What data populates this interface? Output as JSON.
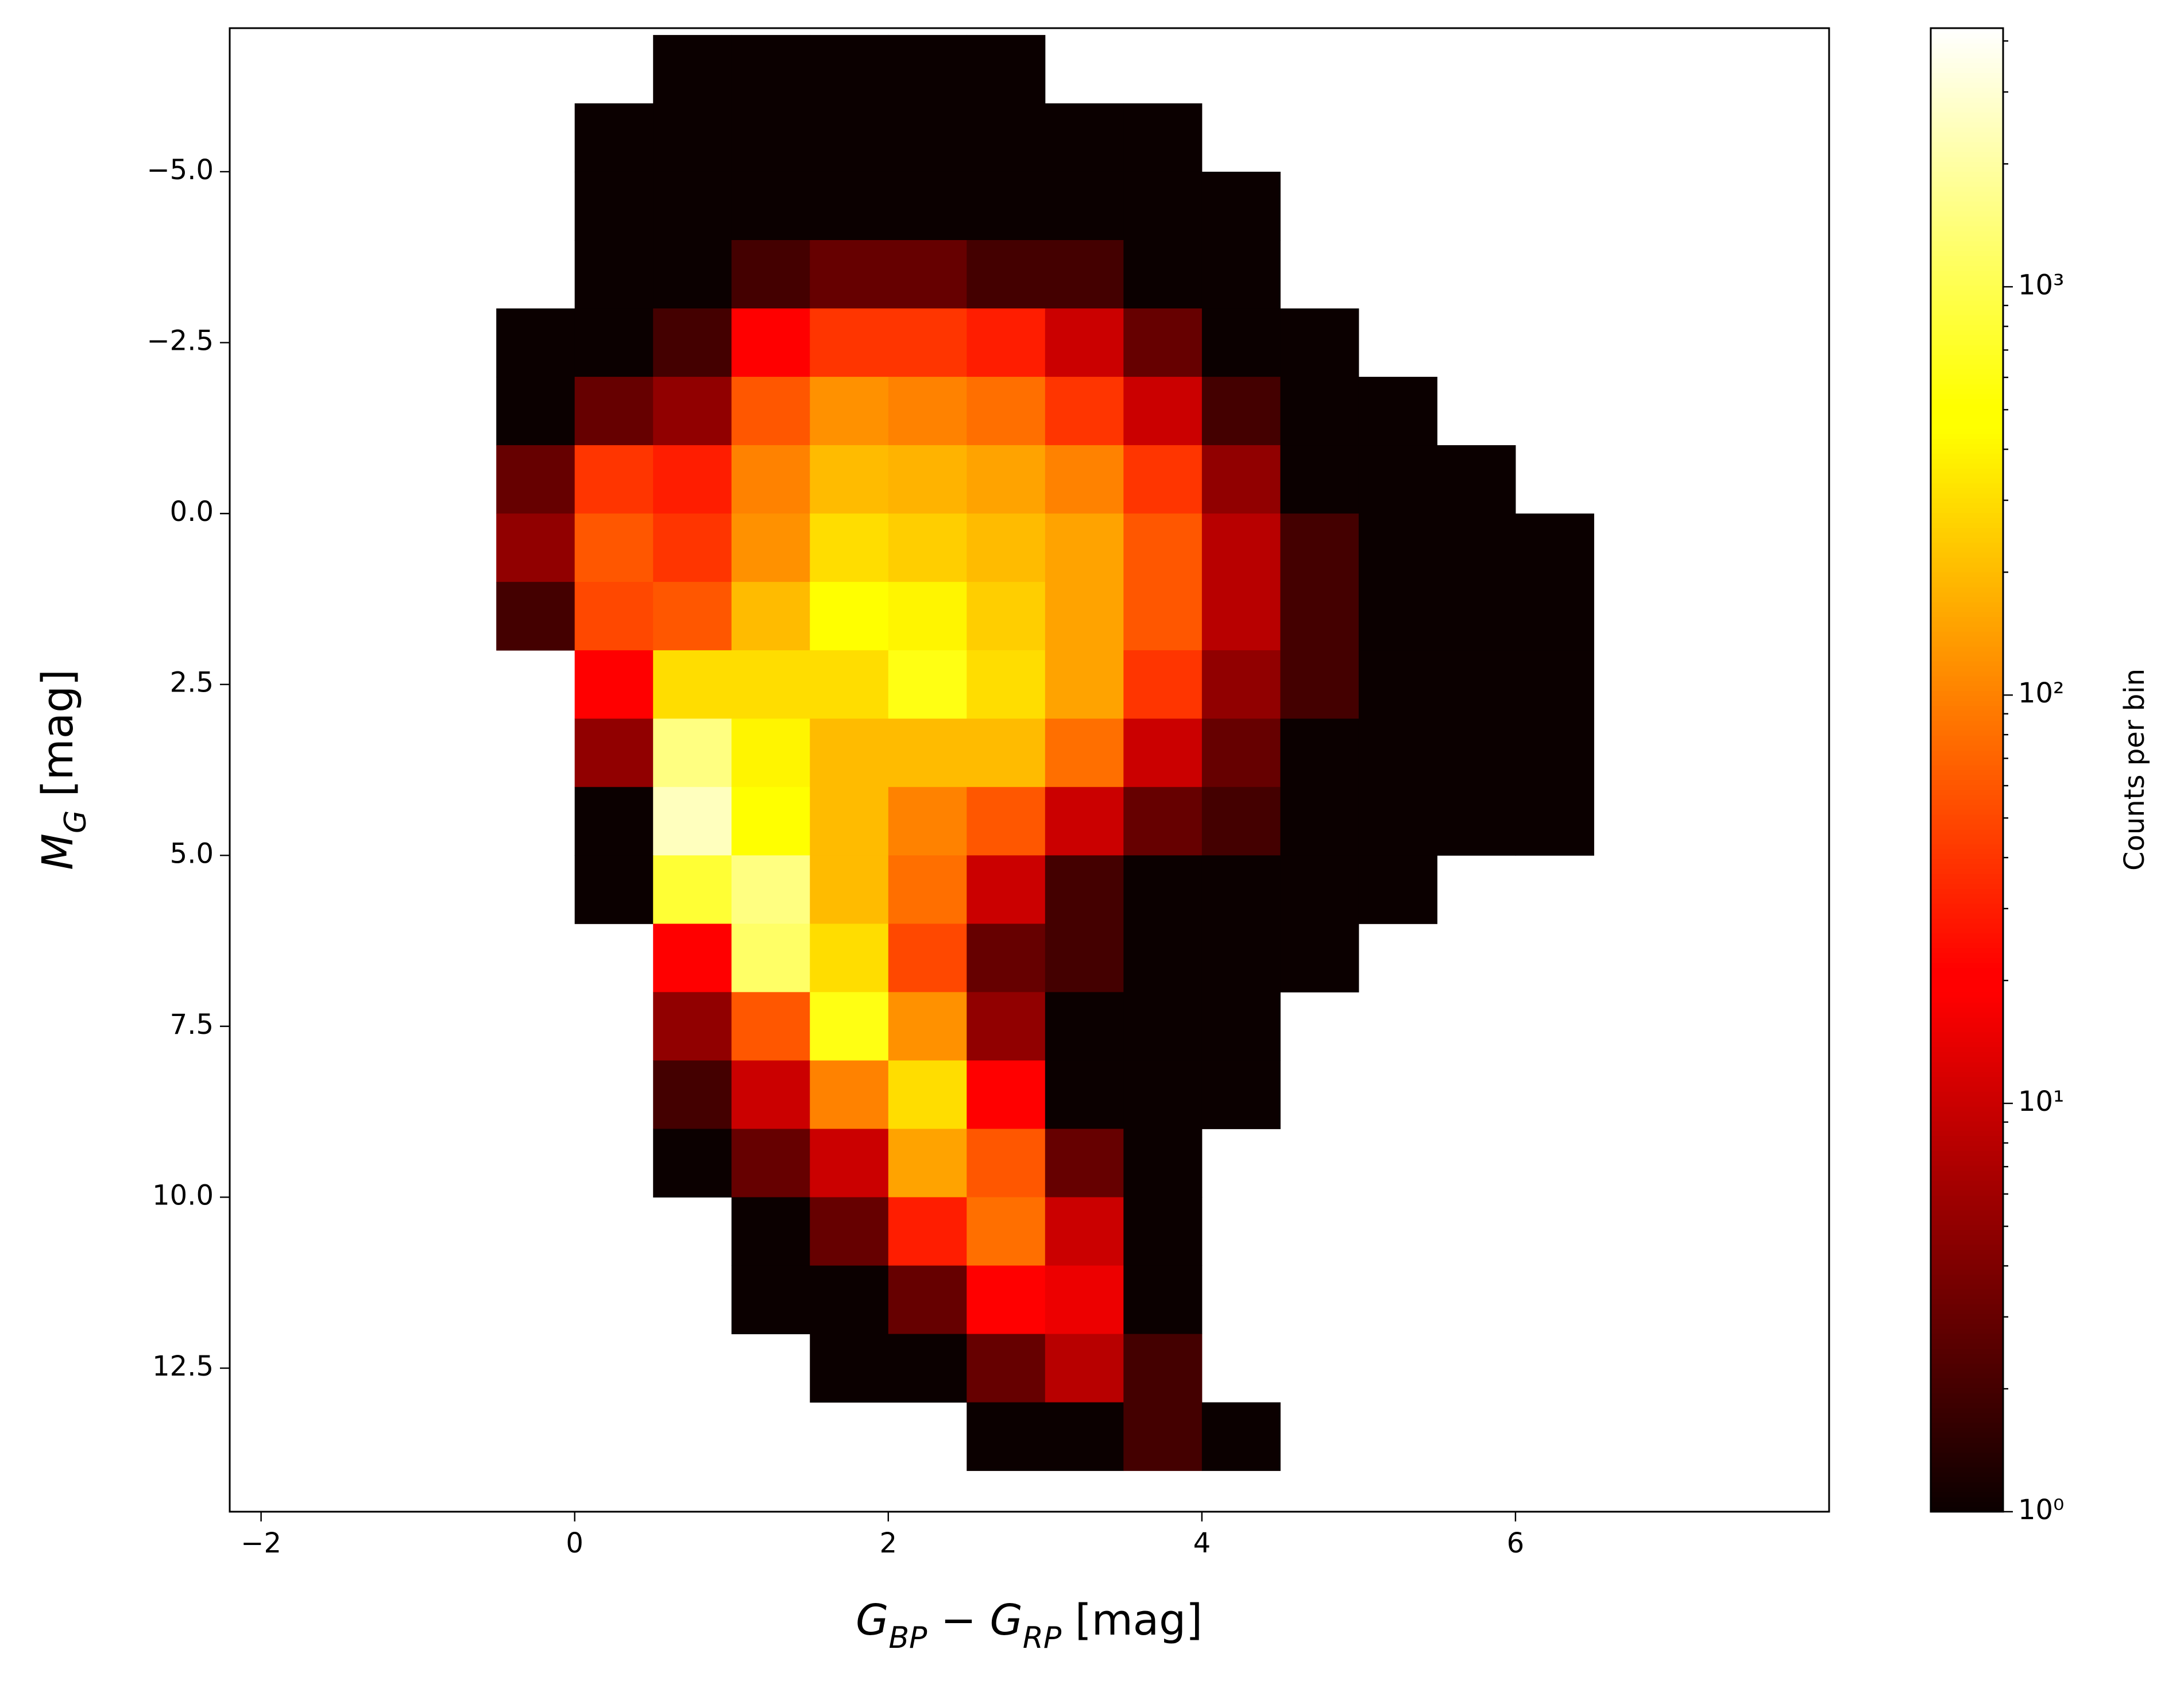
{
  "chart_data": {
    "type": "histogram2d",
    "xlabel": [
      {
        "text": "G"
      },
      {
        "text": "BP",
        "subscript": true
      },
      {
        "text": " − "
      },
      {
        "text": "G"
      },
      {
        "text": "RP",
        "subscript": true
      },
      {
        "text": " [mag]"
      }
    ],
    "ylabel": [
      {
        "text": "M"
      },
      {
        "text": "G",
        "subscript": true
      },
      {
        "text": " [mag]"
      }
    ],
    "colorbar_label": "Counts per bin",
    "colormap": "hot",
    "xlim": [
      -2.2,
      8.0
    ],
    "ylim": [
      14.6,
      -7.1
    ],
    "xticks": [
      {
        "value": -2,
        "label": "−2"
      },
      0,
      2,
      4,
      6
    ],
    "yticks": [
      {
        "value": -5,
        "label": "−5.0"
      },
      {
        "value": -2.5,
        "label": "−2.5"
      },
      {
        "value": 0,
        "label": "0.0"
      },
      {
        "value": 2.5,
        "label": "2.5"
      },
      {
        "value": 5,
        "label": "5.0"
      },
      {
        "value": 7.5,
        "label": "7.5"
      },
      {
        "value": 10,
        "label": "10.0"
      },
      {
        "value": 12.5,
        "label": "12.5"
      }
    ],
    "clim": [
      1,
      4300
    ],
    "clog": true,
    "cticks": [
      {
        "value": 1,
        "label": "10⁰"
      },
      {
        "value": 10,
        "label": "10¹"
      },
      {
        "value": 100,
        "label": "10²"
      },
      {
        "value": 1000,
        "label": "10³"
      }
    ],
    "x_bins": [
      -0.5,
      0,
      0.5,
      1,
      1.5,
      2,
      2.5,
      3,
      3.5,
      4,
      4.5,
      5,
      5.5,
      6,
      6.5,
      7
    ],
    "y_bins": [
      -7,
      -6,
      -5,
      -4,
      -3,
      -2,
      -1,
      0,
      1,
      2,
      3,
      4,
      5,
      6,
      7,
      8,
      9,
      10,
      11,
      12,
      13,
      14
    ],
    "counts": [
      [
        null,
        null,
        1,
        1,
        1,
        1,
        1,
        null,
        null,
        null,
        null,
        null,
        null,
        null,
        null
      ],
      [
        null,
        1,
        1,
        1,
        1,
        1,
        1,
        1,
        1,
        null,
        null,
        null,
        null,
        null,
        null
      ],
      [
        null,
        1,
        1,
        1,
        1,
        1,
        1,
        1,
        1,
        1,
        null,
        null,
        null,
        null,
        null
      ],
      [
        null,
        1,
        1,
        2,
        3,
        3,
        2,
        2,
        1,
        1,
        null,
        null,
        null,
        null,
        null
      ],
      [
        1,
        1,
        2,
        20,
        40,
        40,
        30,
        10,
        3,
        1,
        1,
        null,
        null,
        null,
        null
      ],
      [
        1,
        3,
        5,
        60,
        120,
        100,
        80,
        40,
        10,
        2,
        1,
        1,
        null,
        null,
        null
      ],
      [
        3,
        40,
        30,
        100,
        200,
        180,
        150,
        100,
        40,
        5,
        1,
        1,
        1,
        null,
        null
      ],
      [
        5,
        60,
        40,
        120,
        300,
        250,
        200,
        150,
        60,
        8,
        2,
        1,
        1,
        1,
        null
      ],
      [
        2,
        50,
        60,
        200,
        500,
        400,
        250,
        150,
        60,
        8,
        2,
        1,
        1,
        1,
        null
      ],
      [
        null,
        20,
        300,
        300,
        300,
        600,
        300,
        150,
        40,
        5,
        2,
        1,
        1,
        1,
        null
      ],
      [
        null,
        5,
        1500,
        400,
        200,
        200,
        200,
        80,
        10,
        3,
        1,
        1,
        1,
        1,
        null
      ],
      [
        null,
        1,
        2500,
        500,
        200,
        100,
        60,
        10,
        3,
        2,
        1,
        1,
        1,
        1,
        null
      ],
      [
        null,
        1,
        800,
        1500,
        200,
        80,
        10,
        2,
        1,
        1,
        1,
        1,
        null,
        null,
        null
      ],
      [
        null,
        null,
        20,
        1200,
        300,
        50,
        3,
        2,
        1,
        1,
        1,
        null,
        null,
        null,
        null
      ],
      [
        null,
        null,
        5,
        60,
        600,
        120,
        5,
        1,
        1,
        1,
        null,
        null,
        null,
        null,
        null
      ],
      [
        null,
        null,
        2,
        10,
        100,
        300,
        20,
        1,
        1,
        1,
        null,
        null,
        null,
        null,
        null
      ],
      [
        null,
        null,
        1,
        3,
        10,
        150,
        60,
        3,
        1,
        null,
        null,
        null,
        null,
        null,
        null
      ],
      [
        null,
        null,
        null,
        1,
        3,
        30,
        80,
        10,
        1,
        null,
        null,
        null,
        null,
        null,
        null
      ],
      [
        null,
        null,
        null,
        1,
        1,
        3,
        20,
        15,
        1,
        null,
        null,
        null,
        null,
        null,
        null
      ],
      [
        null,
        null,
        null,
        null,
        1,
        1,
        3,
        8,
        2,
        null,
        null,
        null,
        null,
        null,
        null
      ],
      [
        null,
        null,
        null,
        null,
        null,
        null,
        1,
        1,
        2,
        1,
        null,
        null,
        null,
        null,
        null
      ]
    ]
  }
}
